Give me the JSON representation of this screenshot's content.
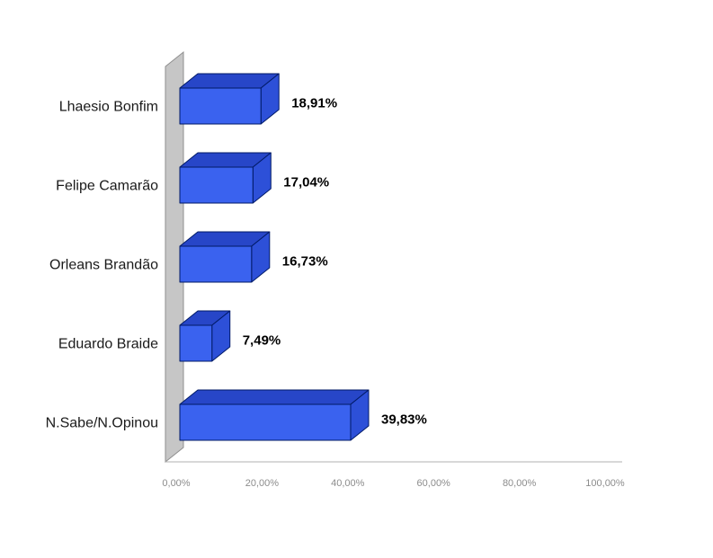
{
  "chart_data": {
    "type": "bar",
    "orientation": "horizontal",
    "title": "",
    "xlabel": "",
    "ylabel": "",
    "categories": [
      "Lhaesio Bonfim",
      "Felipe Camarão",
      "Orleans Brandão",
      "Eduardo Braide",
      "N.Sabe/N.Opinou"
    ],
    "values": [
      18.91,
      17.04,
      16.73,
      7.49,
      39.83
    ],
    "value_labels": [
      "18,91%",
      "17,04%",
      "16,73%",
      "7,49%",
      "39,83%"
    ],
    "x_ticks": [
      "0,00%",
      "20,00%",
      "40,00%",
      "60,00%",
      "80,00%",
      "100,00%"
    ],
    "x_tick_values": [
      0,
      20,
      40,
      60,
      80,
      100
    ],
    "xlim": [
      0,
      100
    ],
    "grid": false,
    "legend": false,
    "style": "3d-horizontal-bar",
    "colors": {
      "bar_front": "#3a62ef",
      "bar_top": "#2746c8",
      "bar_side": "#2d50d8",
      "bar_outline": "#001a66",
      "wall_fill": "#c6c6c6",
      "wall_edge": "#8f8f8f",
      "axis_line": "#b0b0b0",
      "tick_text": "#8c8c8c",
      "label_text": "#1a1a1a",
      "value_text": "#000000",
      "background": "#ffffff"
    }
  }
}
